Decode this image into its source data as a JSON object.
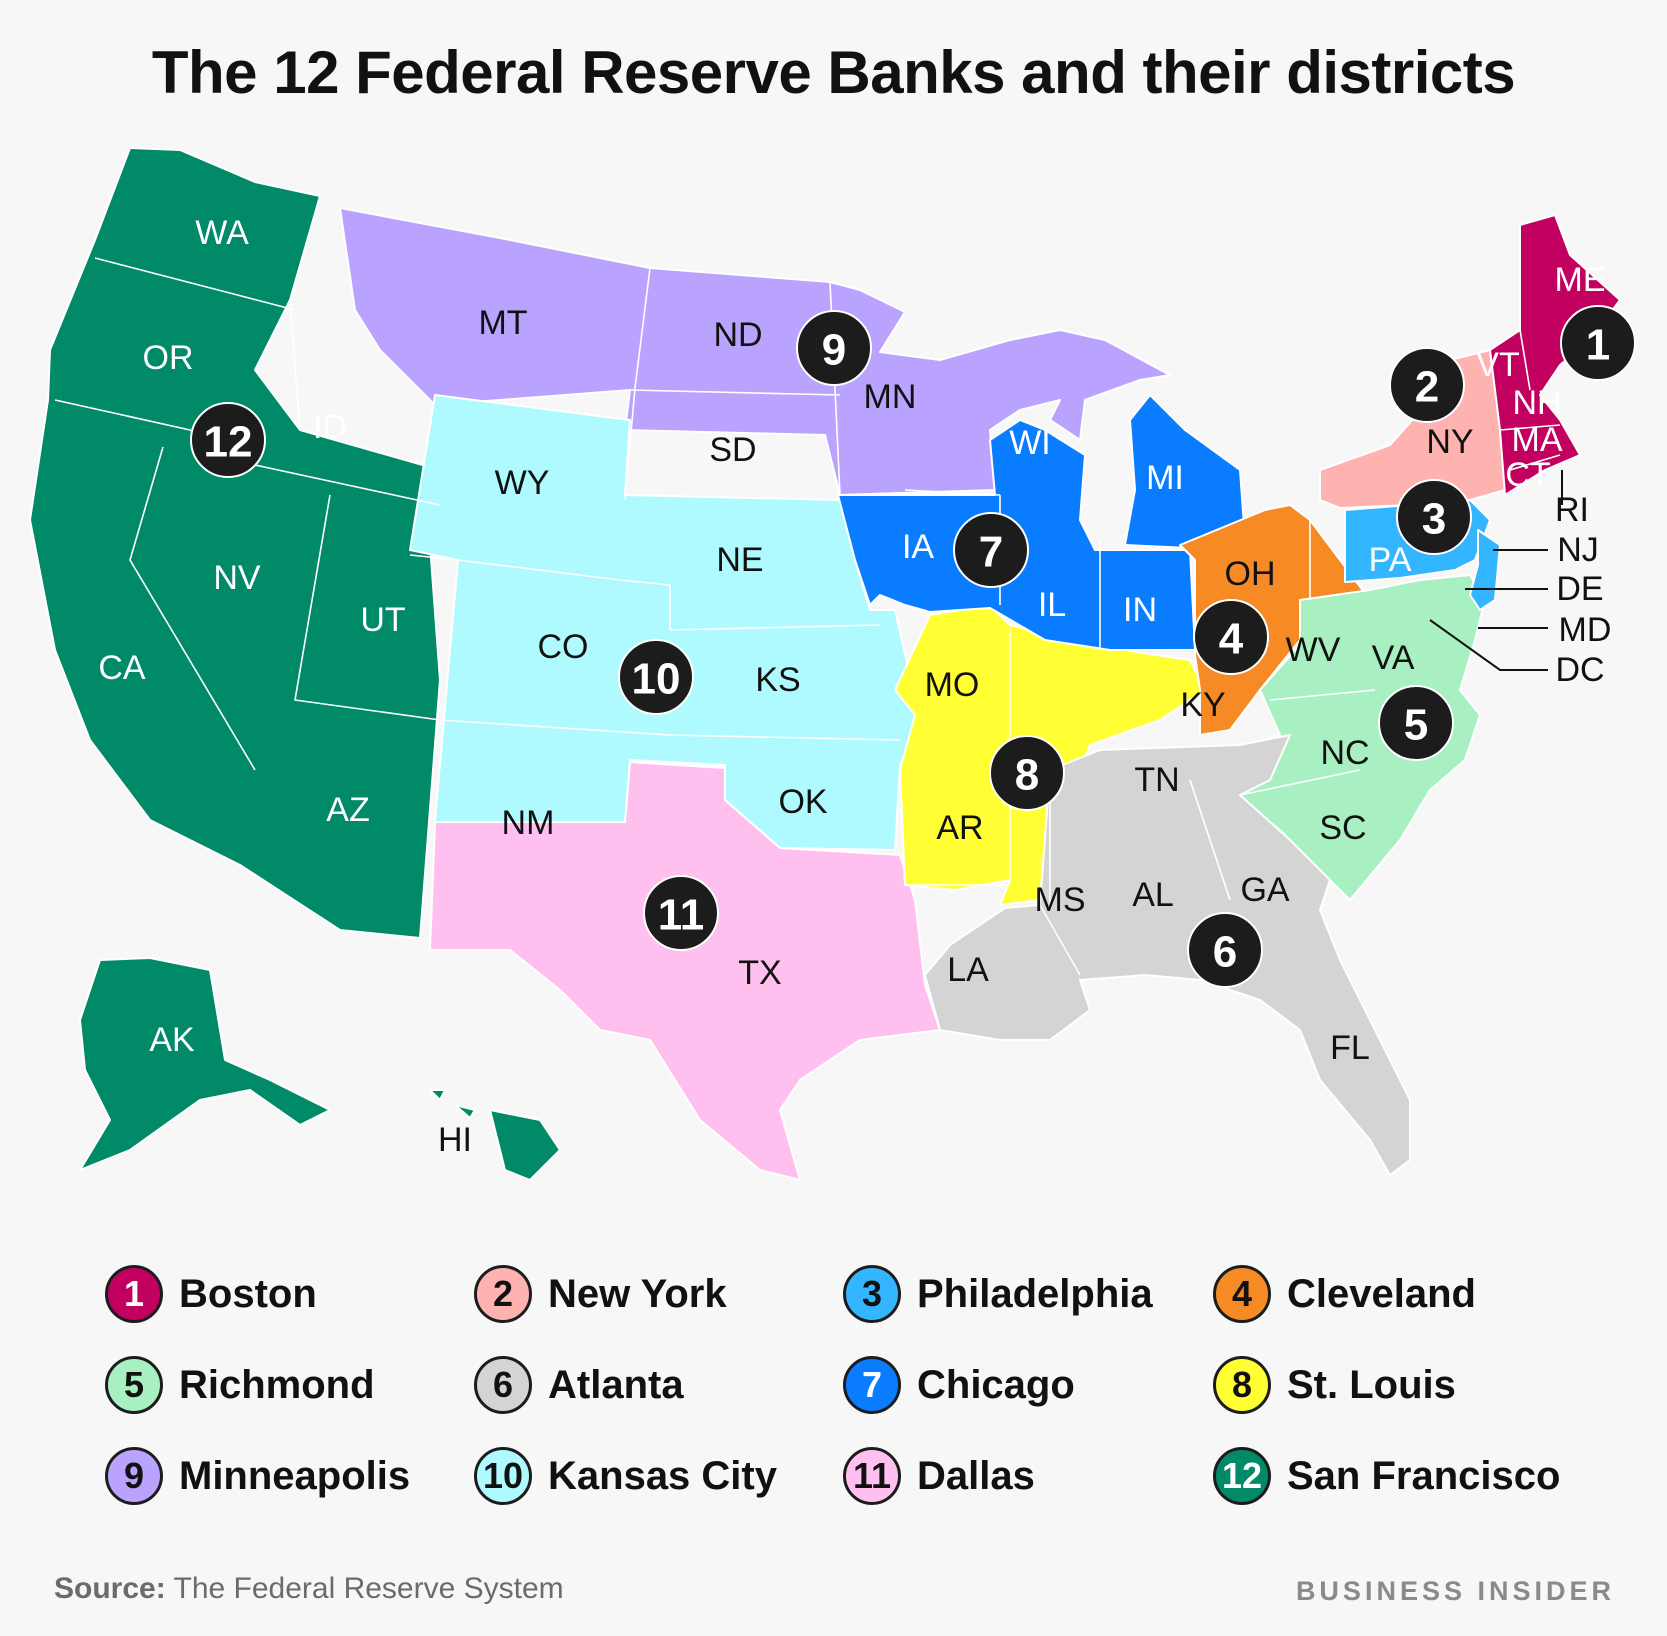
{
  "title": "The 12 Federal Reserve Banks and their districts",
  "districts": [
    {
      "number": "1",
      "name": "Boston",
      "color": "#c2005f"
    },
    {
      "number": "2",
      "name": "New York",
      "color": "#ffb3b0"
    },
    {
      "number": "3",
      "name": "Philadelphia",
      "color": "#33b5ff"
    },
    {
      "number": "4",
      "name": "Cleveland",
      "color": "#f68b25"
    },
    {
      "number": "5",
      "name": "Richmond",
      "color": "#a8f0c1"
    },
    {
      "number": "6",
      "name": "Atlanta",
      "color": "#d4d4d4"
    },
    {
      "number": "7",
      "name": "Chicago",
      "color": "#0a7cff"
    },
    {
      "number": "8",
      "name": "St. Louis",
      "color": "#ffff33"
    },
    {
      "number": "9",
      "name": "Minneapolis",
      "color": "#b9a3ff"
    },
    {
      "number": "10",
      "name": "Kansas City",
      "color": "#aefaff"
    },
    {
      "number": "11",
      "name": "Dallas",
      "color": "#ffc0ef"
    },
    {
      "number": "12",
      "name": "San Francisco",
      "color": "#008a67"
    }
  ],
  "states": {
    "WA": "WA",
    "OR": "OR",
    "CA": "CA",
    "NV": "NV",
    "ID": "ID",
    "UT": "UT",
    "AZ": "AZ",
    "AK": "AK",
    "HI": "HI",
    "MT": "MT",
    "ND": "ND",
    "SD": "SD",
    "MN": "MN",
    "WY": "WY",
    "NE": "NE",
    "CO": "CO",
    "KS": "KS",
    "NM": "NM",
    "OK": "OK",
    "TX": "TX",
    "LA": "LA",
    "MO": "MO",
    "AR": "AR",
    "MS": "MS",
    "KY": "KY",
    "TN": "TN",
    "AL": "AL",
    "GA": "GA",
    "FL": "FL",
    "IA": "IA",
    "IL": "IL",
    "IN": "IN",
    "WI": "WI",
    "MI": "MI",
    "OH": "OH",
    "WV": "WV",
    "VA": "VA",
    "NC": "NC",
    "SC": "SC",
    "PA": "PA",
    "NY": "NY",
    "VT": "VT",
    "NH": "NH",
    "MA": "MA",
    "CT": "CT",
    "ME": "ME",
    "RI": "RI",
    "NJ": "NJ",
    "DE": "DE",
    "MD": "MD",
    "DC": "DC"
  },
  "source_label": "Source:",
  "source_text": "The Federal Reserve System",
  "brand": "BUSINESS INSIDER"
}
